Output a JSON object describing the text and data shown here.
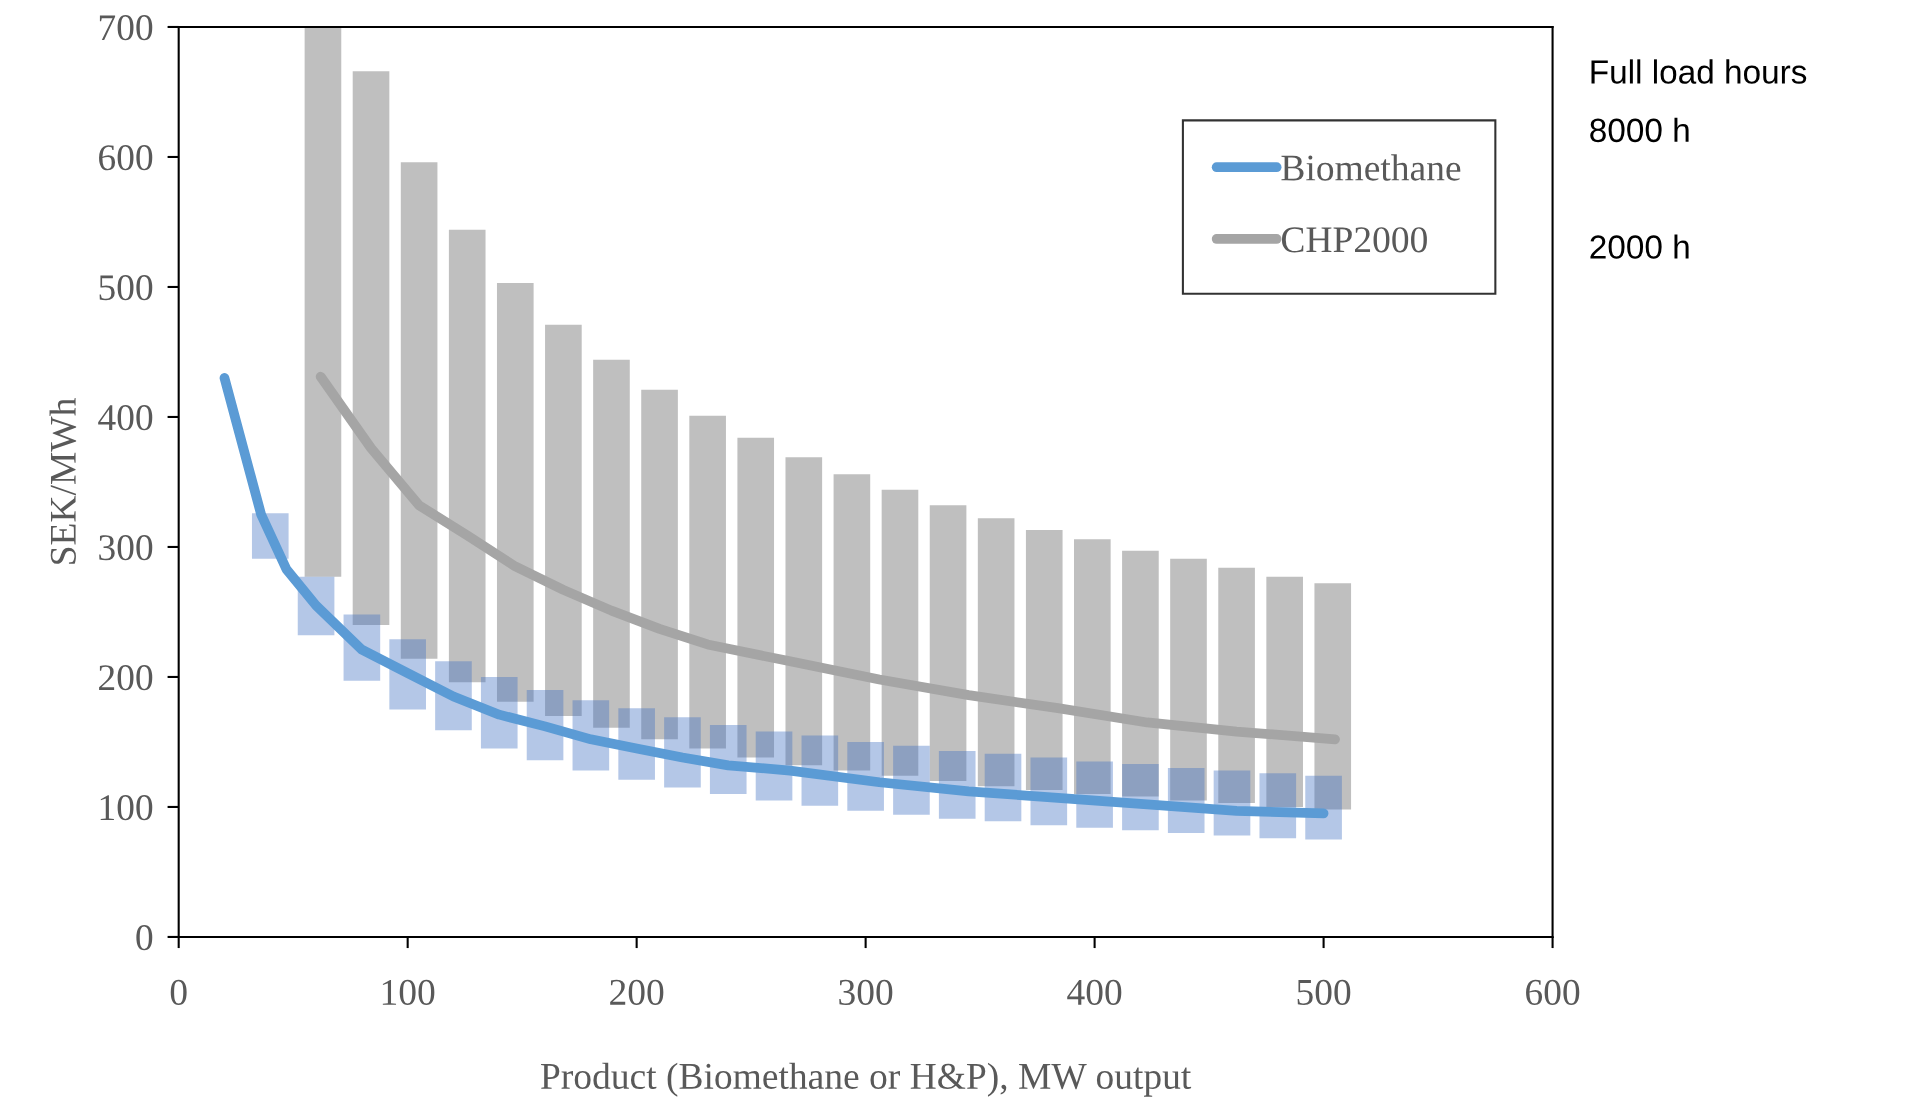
{
  "chart_data": {
    "type": "line",
    "xlabel": "Product (Biomethane or H&P), MW output",
    "ylabel": "SEK/MWh",
    "xlim": [
      0,
      600
    ],
    "xticks": [
      0,
      100,
      200,
      300,
      400,
      500,
      600
    ],
    "ylim": [
      0,
      700
    ],
    "yticks": [
      0,
      100,
      200,
      300,
      400,
      500,
      600,
      700
    ],
    "grid": false,
    "legend": "top right",
    "annotations": [
      "Full load hours",
      "8000 h",
      "2000 h"
    ],
    "series": [
      {
        "type": "bar",
        "color": "#bfbfbf",
        "x": [
          63,
          84,
          105,
          126,
          147,
          168,
          189,
          210,
          231,
          252,
          273,
          294,
          315,
          336,
          357,
          378,
          399,
          420,
          441,
          462,
          483,
          504
        ],
        "base": [
          277,
          240,
          214,
          196,
          181,
          170,
          161,
          152,
          145,
          138,
          132,
          128,
          124,
          120,
          116,
          113,
          110,
          108,
          105,
          103,
          100,
          98
        ],
        "values": [
          423,
          426,
          382,
          348,
          322,
          301,
          283,
          269,
          256,
          246,
          237,
          228,
          220,
          212,
          206,
          200,
          196,
          189,
          186,
          181,
          177,
          174
        ]
      },
      {
        "type": "bar",
        "color": "#b4c7e7",
        "x": [
          40,
          60,
          80,
          100,
          120,
          140,
          160,
          180,
          200,
          220,
          240,
          260,
          280,
          300,
          320,
          340,
          360,
          380,
          400,
          420,
          440,
          460,
          480,
          500
        ],
        "base": [
          291,
          232,
          197,
          175,
          159,
          145,
          136,
          128,
          121,
          115,
          110,
          105,
          101,
          97,
          94,
          91,
          89,
          86,
          84,
          82,
          80,
          78,
          76,
          75
        ],
        "values": [
          35,
          45,
          51,
          54,
          53,
          55,
          54,
          54,
          55,
          54,
          53,
          53,
          54,
          53,
          53,
          52,
          52,
          52,
          51,
          51,
          50,
          50,
          50,
          49
        ]
      },
      {
        "name": "Biomethane",
        "color": "#5b9bd5",
        "x": [
          20,
          36,
          47,
          60,
          80,
          100,
          120,
          140,
          160,
          180,
          200,
          220,
          240,
          267,
          306,
          345,
          384,
          423,
          462,
          500
        ],
        "values": [
          430,
          325,
          283,
          255,
          221,
          203,
          185,
          171,
          162,
          152,
          145,
          138,
          132,
          128,
          119,
          112,
          107,
          102,
          97,
          95
        ]
      },
      {
        "name": "CHP2000",
        "color": "#a5a5a5",
        "x": [
          62,
          84,
          105,
          126,
          147,
          168,
          189,
          210,
          231,
          267,
          306,
          345,
          384,
          423,
          462,
          505
        ],
        "values": [
          431,
          376,
          332,
          309,
          285,
          267,
          251,
          237,
          225,
          212,
          198,
          186,
          176,
          165,
          158,
          152
        ]
      }
    ]
  }
}
